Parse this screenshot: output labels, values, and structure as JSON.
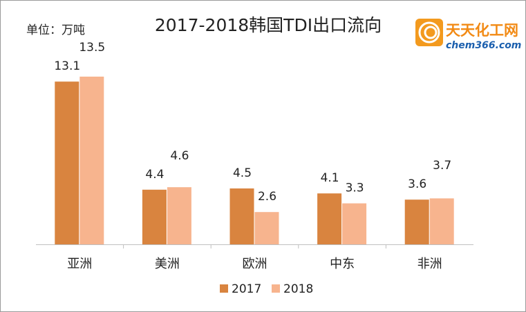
{
  "chart_data": {
    "type": "bar",
    "title": "2017-2018韩国TDI出口流向",
    "unit_label": "单位：万吨",
    "categories": [
      "亚洲",
      "美洲",
      "欧洲",
      "中东",
      "非洲"
    ],
    "series": [
      {
        "name": "2017",
        "color": "#d9843f",
        "values": [
          13.1,
          4.4,
          4.5,
          4.1,
          3.6
        ]
      },
      {
        "name": "2018",
        "color": "#f7b48e",
        "values": [
          13.5,
          4.6,
          2.6,
          3.3,
          3.7
        ]
      }
    ],
    "legend": "bottom",
    "grid": false
  },
  "logo": {
    "name": "天天化工网",
    "url": "chem366.com"
  }
}
